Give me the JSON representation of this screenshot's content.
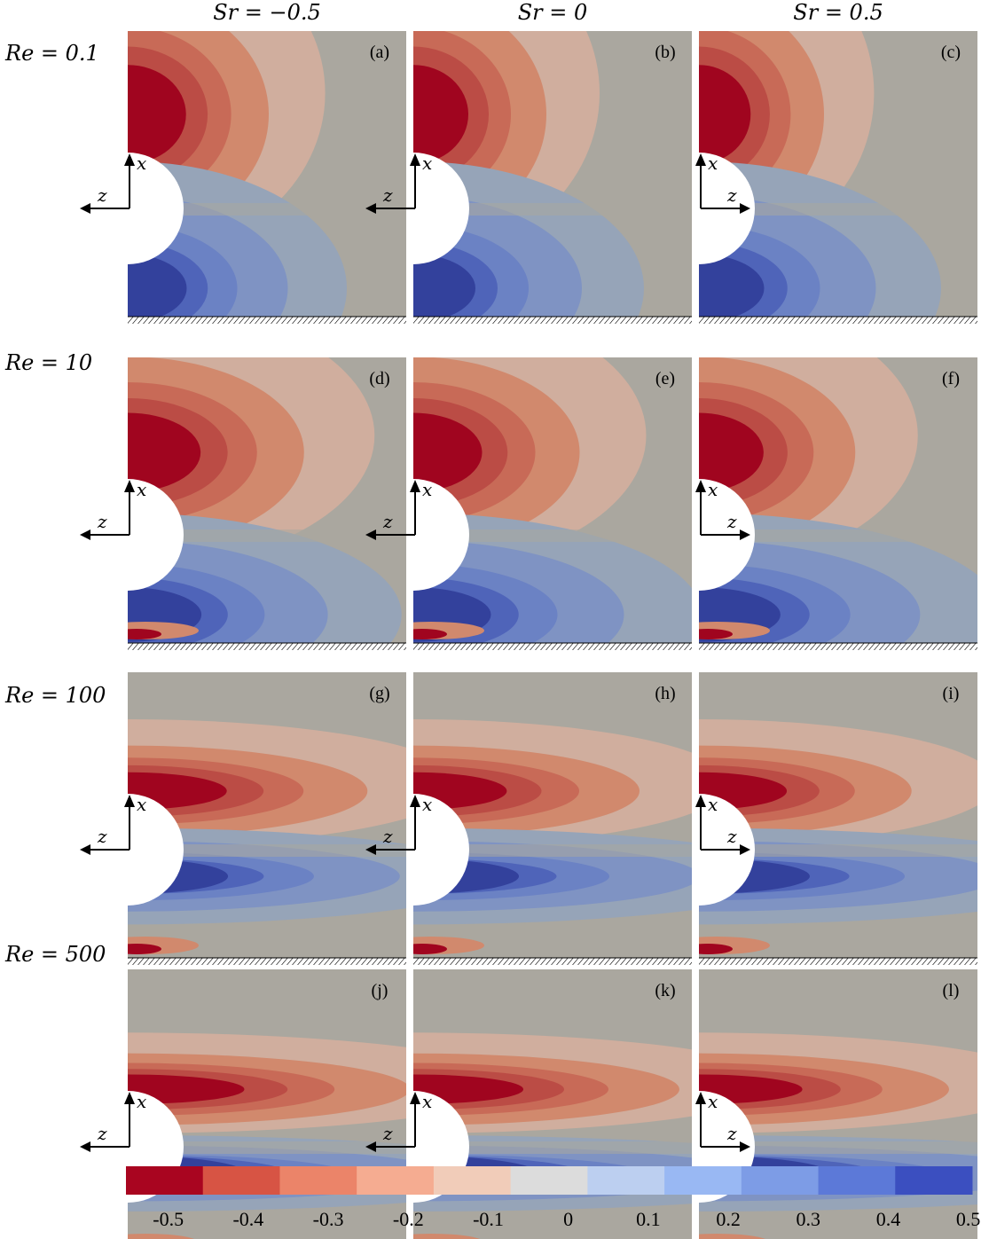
{
  "column_titles": [
    "Sr = −0.5",
    "Sr = 0",
    "Sr = 0.5"
  ],
  "row_titles": [
    "Re = 0.1",
    "Re = 10",
    "Re = 100",
    "Re = 500"
  ],
  "panel_labels": [
    "(a)",
    "(b)",
    "(c)",
    "(d)",
    "(e)",
    "(f)",
    "(g)",
    "(h)",
    "(i)",
    "(j)",
    "(k)",
    "(l)"
  ],
  "axis_labels": {
    "vertical": "x",
    "horizontal": "z"
  },
  "sr_values": [
    -0.5,
    0,
    0.5
  ],
  "re_values": [
    0.1,
    10,
    100,
    500
  ],
  "colorbar": {
    "ticks": [
      "-0.5",
      "-0.4",
      "-0.3",
      "-0.2",
      "-0.1",
      "0",
      "0.1",
      "0.2",
      "0.3",
      "0.4",
      "0.5"
    ],
    "colors": [
      "#a90520",
      "#d75444",
      "#eb8469",
      "#f5ac91",
      "#f1ccb9",
      "#dcdcdc",
      "#bccff0",
      "#99b8f3",
      "#7d9ce6",
      "#5c79d8",
      "#3b4fc0"
    ]
  },
  "colors": {
    "background": "#aaa79f",
    "n1": "#d0ae9e",
    "n2": "#d1896d",
    "n3": "#c86a57",
    "n4": "#bb4c45",
    "n5": "#a0051f",
    "p1": "#96a4b8",
    "p2": "#7f93c3",
    "p3": "#6b82c4",
    "p4": "#4f64b9",
    "p5": "#33419c",
    "wall_hatch": "#000000"
  }
}
